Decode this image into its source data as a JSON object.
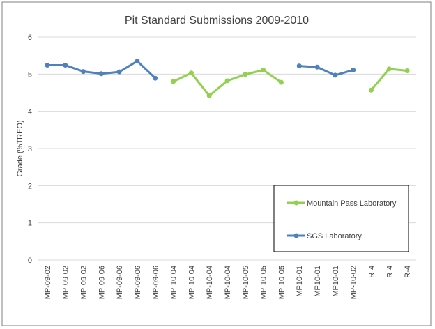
{
  "chart_data": {
    "type": "line",
    "title": "Pit Standard Submissions 2009-2010",
    "ylabel": "Grade (%TREO)",
    "xlabel": "",
    "ylim": [
      0,
      6
    ],
    "yticks": [
      "0",
      "1",
      "2",
      "3",
      "4",
      "5",
      "6"
    ],
    "grid": true,
    "legend_position": "bottom-right",
    "categories": [
      "MP-09-02",
      "MP-09-02",
      "MP-09-02",
      "MP-09-06",
      "MP-09-06",
      "MP-09-06",
      "MP-09-06",
      "MP-10-04",
      "MP-10-04",
      "MP-10-04",
      "MP-10-04",
      "MP-10-05",
      "MP-10-05",
      "MP-10-05",
      "MP10-01",
      "MP10-01",
      "MP10-01",
      "MP-10-02",
      "R-4",
      "R-4",
      "R-4"
    ],
    "series": [
      {
        "name": "Mountain Pass Laboratory",
        "color": "#92D050",
        "segments": [
          {
            "start": 7,
            "values": [
              4.8,
              5.03,
              4.42,
              4.82,
              4.99,
              5.11,
              4.78
            ]
          },
          {
            "start": 18,
            "values": [
              4.57,
              5.14,
              5.09
            ]
          }
        ]
      },
      {
        "name": "SGS Laboratory",
        "color": "#4F81BD",
        "segments": [
          {
            "start": 0,
            "values": [
              5.24,
              5.24,
              5.07,
              5.01,
              5.06,
              5.35,
              4.89
            ]
          },
          {
            "start": 14,
            "values": [
              5.22,
              5.19,
              4.97,
              5.11
            ]
          }
        ]
      }
    ]
  }
}
